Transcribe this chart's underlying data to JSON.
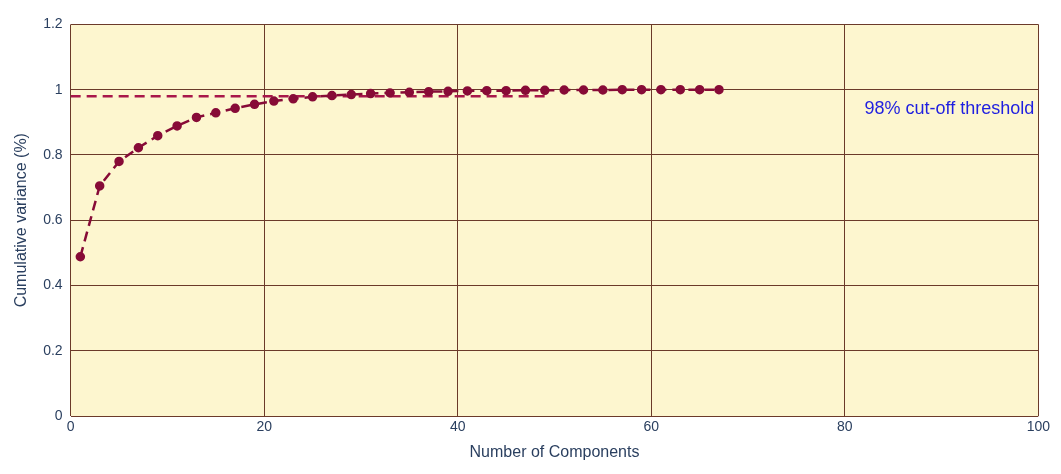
{
  "chart_data": {
    "type": "line",
    "xlabel": "Number of Components",
    "ylabel": "Cumulative variance (%)",
    "xlim": [
      0,
      100
    ],
    "xticks": [
      0,
      20,
      40,
      60,
      80,
      100
    ],
    "ylim": [
      0,
      1.2
    ],
    "yticks": [
      0,
      0.2,
      0.4,
      0.6,
      0.8,
      1,
      1.2
    ],
    "grid": true,
    "marker": "circle",
    "line_style": "dashed",
    "series": [
      {
        "color": "#870b37",
        "x": [
          1,
          3,
          5,
          7,
          9,
          11,
          13,
          15,
          17,
          19,
          21,
          23,
          25,
          27,
          29,
          31,
          33,
          35,
          37,
          39,
          41,
          43,
          45,
          47,
          49,
          51,
          53,
          55,
          57,
          59,
          61,
          63,
          65,
          67
        ],
        "values": [
          0.488,
          0.705,
          0.78,
          0.822,
          0.859,
          0.889,
          0.915,
          0.929,
          0.943,
          0.955,
          0.965,
          0.972,
          0.978,
          0.982,
          0.985,
          0.988,
          0.99,
          0.992,
          0.994,
          0.995,
          0.996,
          0.997,
          0.997,
          0.998,
          0.998,
          0.999,
          0.999,
          0.999,
          1,
          1,
          1,
          1,
          1,
          1
        ]
      },
      {
        "color": "#a8174a",
        "marker": "none",
        "x": [
          0,
          49
        ],
        "values": [
          0.98,
          0.98
        ]
      }
    ],
    "annotations": [
      "98% cut-off threshold"
    ]
  }
}
